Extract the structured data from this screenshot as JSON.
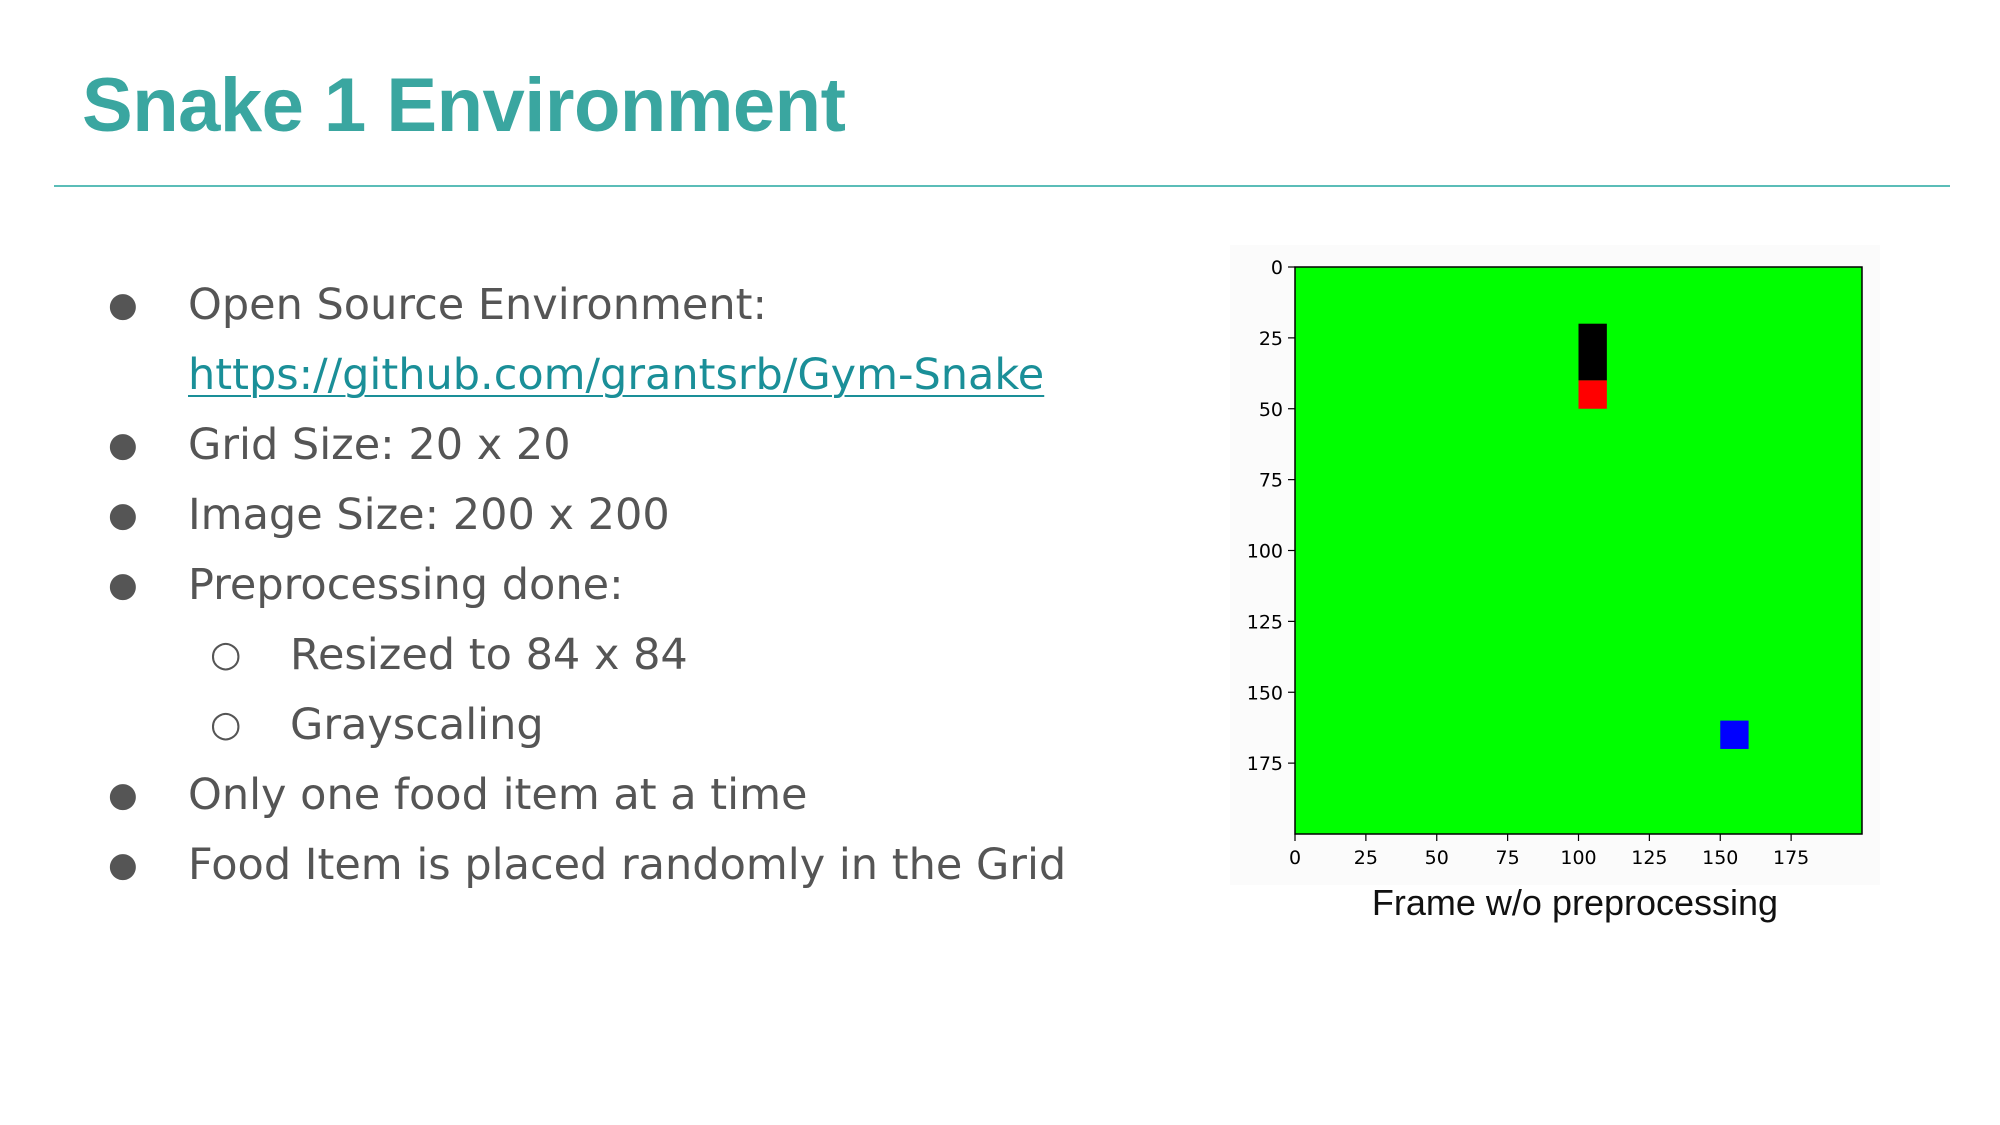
{
  "slide": {
    "title": "Snake 1 Environment"
  },
  "bullets": [
    {
      "level": 1,
      "marker": "●",
      "text": "Open Source Environment:"
    },
    {
      "level": 1,
      "marker": "",
      "text": "https://github.com/grantsrb/Gym-Snake",
      "link": true
    },
    {
      "level": 1,
      "marker": "●",
      "text": "Grid Size: 20 x 20"
    },
    {
      "level": 1,
      "marker": "●",
      "text": "Image Size: 200 x 200"
    },
    {
      "level": 1,
      "marker": "●",
      "text": "Preprocessing done:"
    },
    {
      "level": 2,
      "marker": "○",
      "text": "Resized to 84 x 84"
    },
    {
      "level": 2,
      "marker": "○",
      "text": "Grayscaling"
    },
    {
      "level": 1,
      "marker": "●",
      "text": "Only one food item at a time"
    },
    {
      "level": 1,
      "marker": "●",
      "text": "Food Item is placed randomly in the Grid"
    }
  ],
  "figure": {
    "caption": "Frame w/o preprocessing",
    "colors": {
      "background": "#00ff00",
      "snake_body": "#000000",
      "snake_head": "#ff0000",
      "food": "#0000ff"
    }
  },
  "chart_data": {
    "type": "heatmap",
    "title": "",
    "xlabel": "",
    "ylabel": "",
    "xlim": [
      0,
      200
    ],
    "ylim": [
      200,
      0
    ],
    "xticks": [
      0,
      25,
      50,
      75,
      100,
      125,
      150,
      175
    ],
    "yticks": [
      0,
      25,
      50,
      75,
      100,
      125,
      150,
      175
    ],
    "cells": [
      {
        "label": "snake-body",
        "x": 100,
        "y": 20,
        "w": 10,
        "h": 20,
        "color": "#000000"
      },
      {
        "label": "snake-head",
        "x": 100,
        "y": 40,
        "w": 10,
        "h": 10,
        "color": "#ff0000"
      },
      {
        "label": "food",
        "x": 150,
        "y": 160,
        "w": 10,
        "h": 10,
        "color": "#0000ff"
      }
    ]
  }
}
